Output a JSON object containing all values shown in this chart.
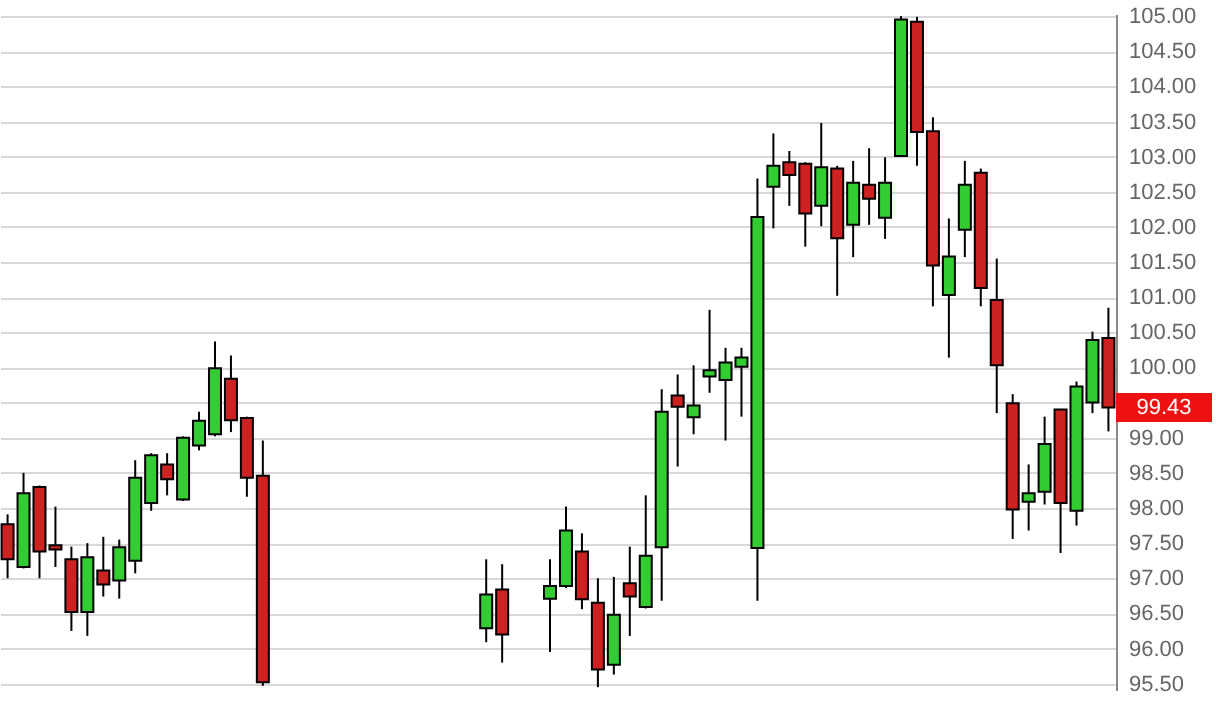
{
  "chart_data": {
    "type": "candlestick",
    "categories": [
      null,
      null,
      null,
      null,
      null,
      null,
      null,
      null,
      null,
      null,
      null,
      null,
      null,
      null,
      null,
      null,
      null,
      null,
      null,
      null,
      null,
      null,
      null,
      null,
      null,
      null,
      null,
      null,
      null,
      null,
      null,
      null,
      null,
      null,
      null,
      null,
      null,
      null,
      null,
      null,
      null,
      null,
      null,
      null,
      null,
      null,
      null,
      null,
      null,
      null,
      null,
      null,
      null,
      null,
      null,
      null,
      null,
      null,
      null,
      null,
      null,
      null,
      null,
      null,
      null,
      null,
      null,
      null,
      null,
      null
    ],
    "ohlc": [
      [
        97.77,
        97.91,
        97.0,
        97.27
      ],
      [
        97.16,
        98.5,
        97.14,
        98.21
      ],
      [
        98.3,
        98.32,
        97.0,
        97.38
      ],
      [
        97.47,
        98.02,
        97.16,
        97.41
      ],
      [
        97.27,
        97.45,
        96.25,
        96.52
      ],
      [
        96.52,
        97.5,
        96.18,
        97.3
      ],
      [
        97.11,
        97.59,
        96.74,
        96.91
      ],
      [
        96.97,
        97.55,
        96.71,
        97.44
      ],
      [
        97.25,
        98.68,
        97.07,
        98.43
      ],
      [
        98.07,
        98.78,
        97.96,
        98.75
      ],
      [
        98.62,
        98.78,
        98.18,
        98.41
      ],
      [
        98.12,
        99.02,
        98.1,
        99.0
      ],
      [
        98.89,
        99.37,
        98.82,
        99.24
      ],
      [
        99.05,
        100.37,
        99.02,
        99.99
      ],
      [
        99.84,
        100.17,
        99.08,
        99.25
      ],
      [
        99.28,
        99.3,
        98.16,
        98.43
      ],
      [
        98.46,
        98.96,
        95.47,
        95.52
      ],
      null,
      null,
      null,
      null,
      null,
      null,
      null,
      null,
      null,
      null,
      null,
      null,
      null,
      [
        96.29,
        97.27,
        96.09,
        96.77
      ],
      [
        96.84,
        97.2,
        95.8,
        96.2
      ],
      null,
      null,
      [
        96.71,
        97.27,
        95.95,
        96.89
      ],
      [
        96.89,
        98.02,
        96.86,
        97.68
      ],
      [
        97.38,
        97.64,
        96.56,
        96.7
      ],
      [
        96.65,
        97.0,
        95.45,
        95.7
      ],
      [
        95.77,
        97.02,
        95.63,
        96.48
      ],
      [
        96.93,
        97.45,
        96.18,
        96.74
      ],
      [
        96.59,
        98.18,
        96.57,
        97.32
      ],
      [
        97.44,
        99.69,
        96.68,
        99.37
      ],
      [
        99.6,
        99.9,
        98.59,
        99.44
      ],
      [
        99.29,
        100.03,
        99.05,
        99.46
      ],
      [
        99.87,
        100.82,
        99.64,
        99.96
      ],
      [
        99.82,
        100.28,
        98.96,
        100.07
      ],
      [
        100.01,
        100.28,
        99.3,
        100.14
      ],
      [
        97.43,
        102.69,
        96.68,
        102.14
      ],
      [
        102.57,
        103.33,
        101.98,
        102.87
      ],
      [
        102.92,
        103.08,
        102.3,
        102.74
      ],
      [
        102.9,
        102.92,
        101.72,
        102.19
      ],
      [
        102.3,
        103.48,
        102.01,
        102.85
      ],
      [
        102.83,
        102.87,
        101.02,
        101.84
      ],
      [
        102.03,
        102.94,
        101.57,
        102.63
      ],
      [
        102.6,
        103.12,
        102.03,
        102.4
      ],
      [
        102.13,
        102.99,
        101.83,
        102.63
      ],
      [
        103.01,
        105.0,
        103.0,
        104.95
      ],
      [
        104.92,
        104.99,
        102.87,
        103.35
      ],
      [
        103.36,
        103.56,
        100.87,
        101.45
      ],
      [
        101.03,
        102.12,
        100.14,
        101.58
      ],
      [
        101.96,
        102.94,
        101.57,
        102.6
      ],
      [
        102.77,
        102.83,
        100.87,
        101.13
      ],
      [
        100.96,
        101.55,
        99.35,
        100.03
      ],
      [
        99.49,
        99.62,
        97.56,
        97.98
      ],
      [
        98.09,
        98.62,
        97.68,
        98.21
      ],
      [
        98.23,
        99.3,
        98.05,
        98.91
      ],
      [
        99.4,
        99.41,
        97.36,
        98.07
      ],
      [
        97.96,
        99.8,
        97.75,
        99.73
      ],
      [
        99.5,
        100.51,
        99.35,
        100.39
      ],
      [
        100.42,
        100.85,
        99.09,
        99.43
      ]
    ],
    "colors": [
      "#cc2222",
      "#33cc33",
      "#cc2222",
      "#cc2222",
      "#cc2222",
      "#33cc33",
      "#cc2222",
      "#33cc33",
      "#33cc33",
      "#33cc33",
      "#cc2222",
      "#33cc33",
      "#33cc33",
      "#33cc33",
      "#cc2222",
      "#cc2222",
      "#cc2222",
      null,
      null,
      null,
      null,
      null,
      null,
      null,
      null,
      null,
      null,
      null,
      null,
      null,
      "#33cc33",
      "#cc2222",
      null,
      null,
      "#33cc33",
      "#33cc33",
      "#cc2222",
      "#cc2222",
      "#33cc33",
      "#cc2222",
      "#33cc33",
      "#33cc33",
      "#cc2222",
      "#33cc33",
      "#33cc33",
      "#33cc33",
      "#33cc33",
      "#33cc33",
      "#33cc33",
      "#cc2222",
      "#cc2222",
      "#33cc33",
      "#cc2222",
      "#33cc33",
      "#cc2222",
      "#33cc33",
      "#33cc33",
      "#cc2222",
      "#cc2222",
      "#33cc33",
      "#33cc33",
      "#cc2222",
      "#cc2222",
      "#cc2222",
      "#33cc33",
      "#33cc33",
      "#cc2222",
      "#33cc33",
      "#33cc33",
      "#cc2222"
    ],
    "ylim": [
      95.41,
      105.03
    ],
    "yticks": [
      {
        "value": 95.5,
        "label": "95.50"
      },
      {
        "value": 96,
        "label": "96.00"
      },
      {
        "value": 96.5,
        "label": "96.50"
      },
      {
        "value": 97,
        "label": "97.00"
      },
      {
        "value": 97.5,
        "label": "97.50"
      },
      {
        "value": 98,
        "label": "98.00"
      },
      {
        "value": 98.5,
        "label": "98.50"
      },
      {
        "value": 99,
        "label": "99.00"
      },
      {
        "value": 99.5,
        "label": null
      },
      {
        "value": 100,
        "label": "100.00"
      },
      {
        "value": 100.5,
        "label": "100.50"
      },
      {
        "value": 101,
        "label": "101.00"
      },
      {
        "value": 101.5,
        "label": "101.50"
      },
      {
        "value": 102,
        "label": "102.00"
      },
      {
        "value": 102.5,
        "label": "102.50"
      },
      {
        "value": 103,
        "label": "103.00"
      },
      {
        "value": 103.5,
        "label": "103.50"
      },
      {
        "value": 104,
        "label": "104.00"
      },
      {
        "value": 104.5,
        "label": "104.50"
      },
      {
        "value": 105,
        "label": "105.00"
      }
    ],
    "annotations": [
      "99.43"
    ],
    "grid": "y",
    "tick_labels": "y"
  }
}
